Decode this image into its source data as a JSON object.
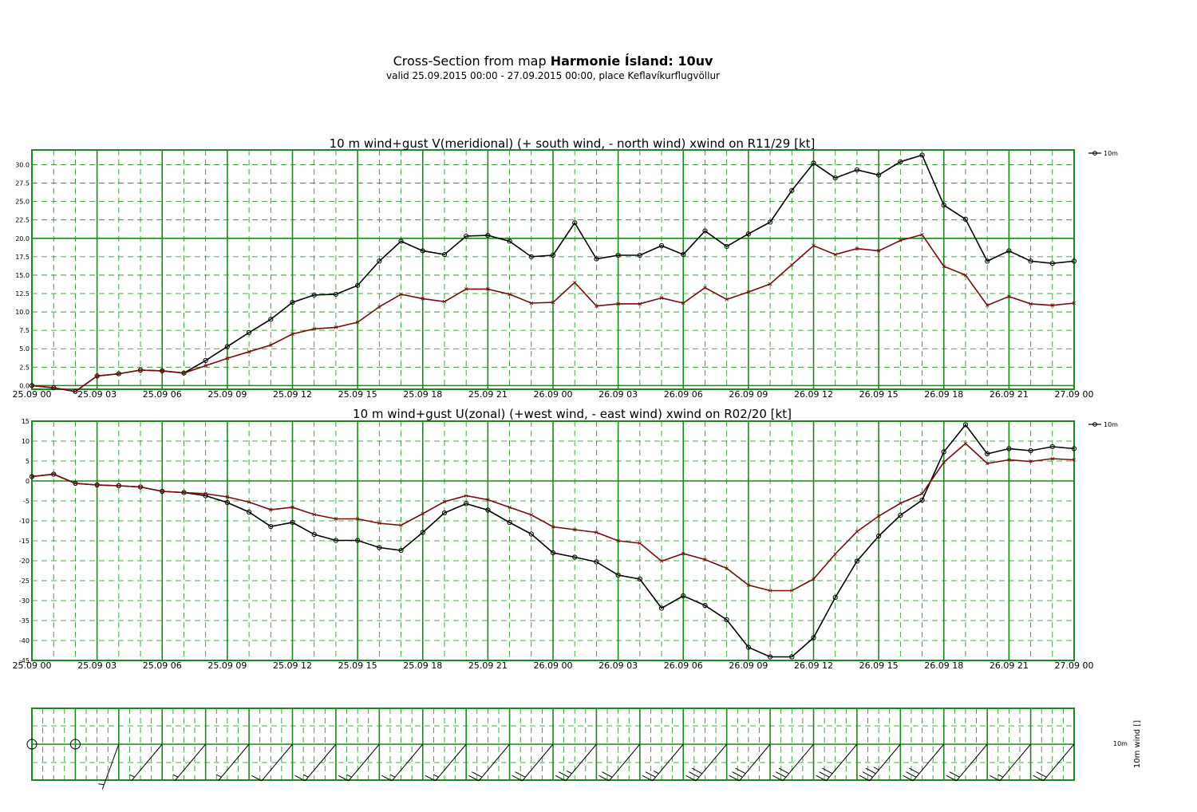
{
  "header": {
    "title_prefix": "Cross-Section from map ",
    "title_bold": "Harmonie Ísland: 10uv",
    "subtitle": "valid 25.09.2015 00:00 - 27.09.2015 00:00, place Keflavíkurflugvöllur"
  },
  "x_tick_labels": [
    "25.09 00",
    "25.09 03",
    "25.09 06",
    "25.09 09",
    "25.09 12",
    "25.09 15",
    "25.09 18",
    "25.09 21",
    "26.09 00",
    "26.09 03",
    "26.09 06",
    "26.09 09",
    "26.09 12",
    "26.09 15",
    "26.09 18",
    "26.09 21",
    "27.09 00"
  ],
  "colors": {
    "grid": "#1a8a1a",
    "wind": "#000000",
    "gust": "#7a0a0a"
  },
  "chart_data": [
    {
      "type": "line",
      "title": "10 m wind+gust V(meridional) (+ south wind, - north wind) xwind on R11/29 [kt]",
      "x_unit": "hours since 25.09 00",
      "x": [
        0,
        1,
        2,
        3,
        4,
        5,
        6,
        7,
        8,
        9,
        10,
        11,
        12,
        13,
        14,
        15,
        16,
        17,
        18,
        19,
        20,
        21,
        22,
        23,
        24,
        25,
        26,
        27,
        28,
        29,
        30,
        31,
        32,
        33,
        34,
        35,
        36,
        37,
        38,
        39,
        40,
        41,
        42,
        43,
        44,
        45,
        46,
        47,
        48
      ],
      "xlim": [
        0,
        48
      ],
      "ylim": [
        -0.5,
        32
      ],
      "y_ticks": [
        "0.0",
        "2.5",
        "5.0",
        "7.5",
        "10.0",
        "12.5",
        "15.0",
        "17.5",
        "20.0",
        "22.5",
        "25.0",
        "27.5",
        "30.0"
      ],
      "legend": "10m",
      "series": [
        {
          "name": "10m",
          "role": "wind",
          "marker": "circle",
          "values": [
            0,
            -0.3,
            -0.8,
            1.3,
            1.6,
            2.1,
            2.0,
            1.7,
            3.4,
            5.3,
            7.2,
            9.0,
            11.3,
            12.3,
            12.4,
            13.6,
            16.9,
            19.6,
            18.3,
            17.8,
            20.3,
            20.4,
            19.6,
            17.5,
            17.7,
            22.1,
            17.2,
            17.7,
            17.7,
            19.0,
            17.8,
            21.0,
            18.9,
            20.6,
            22.2,
            26.5,
            30.2,
            28.2,
            29.3,
            28.6,
            30.4,
            31.3,
            24.5,
            22.6,
            16.9,
            18.3,
            16.9,
            16.6,
            16.9
          ]
        },
        {
          "name": "",
          "role": "gust",
          "values": [
            0,
            -0.3,
            -0.8,
            1.3,
            1.6,
            2.1,
            2.0,
            1.7,
            2.7,
            3.7,
            4.6,
            5.5,
            7.0,
            7.7,
            7.9,
            8.6,
            10.7,
            12.4,
            11.8,
            11.4,
            13.1,
            13.1,
            12.4,
            11.2,
            11.3,
            14.0,
            10.8,
            11.1,
            11.1,
            11.9,
            11.2,
            13.3,
            11.7,
            12.7,
            13.8,
            16.4,
            19.0,
            17.8,
            18.6,
            18.3,
            19.7,
            20.5,
            16.2,
            15.0,
            10.9,
            12.1,
            11.1,
            10.9,
            11.2
          ]
        }
      ]
    },
    {
      "type": "line",
      "title": "10 m wind+gust U(zonal) (+west wind, - east wind) xwind on R02/20 [kt]",
      "x_unit": "hours since 25.09 00",
      "x": [
        0,
        1,
        2,
        3,
        4,
        5,
        6,
        7,
        8,
        9,
        10,
        11,
        12,
        13,
        14,
        15,
        16,
        17,
        18,
        19,
        20,
        21,
        22,
        23,
        24,
        25,
        26,
        27,
        28,
        29,
        30,
        31,
        32,
        33,
        34,
        35,
        36,
        37,
        38,
        39,
        40,
        41,
        42,
        43,
        44,
        45,
        46,
        47,
        48
      ],
      "xlim": [
        0,
        48
      ],
      "ylim": [
        -45,
        15
      ],
      "y_ticks": [
        "15",
        "10",
        "5",
        "0",
        "-5",
        "-10",
        "-15",
        "-20",
        "-25",
        "-30",
        "-35",
        "-40",
        "-45"
      ],
      "legend": "10m",
      "series": [
        {
          "name": "10m",
          "role": "wind",
          "marker": "circle",
          "values": [
            1.1,
            1.7,
            -0.6,
            -1.0,
            -1.2,
            -1.5,
            -2.6,
            -2.9,
            -3.7,
            -5.4,
            -7.8,
            -11.4,
            -10.4,
            -13.4,
            -14.9,
            -14.9,
            -16.7,
            -17.4,
            -12.9,
            -8.0,
            -5.7,
            -7.3,
            -10.4,
            -13.3,
            -18.0,
            -19.1,
            -20.3,
            -23.6,
            -24.6,
            -31.9,
            -28.8,
            -31.2,
            -34.8,
            -41.7,
            -44.1,
            -44.1,
            -39.3,
            -29.2,
            -20.1,
            -13.8,
            -8.6,
            -4.8,
            7.3,
            14.1,
            6.8,
            8.1,
            7.6,
            8.6,
            8.1
          ]
        },
        {
          "name": "",
          "role": "gust",
          "values": [
            1.1,
            1.7,
            -0.6,
            -1.0,
            -1.2,
            -1.5,
            -2.6,
            -2.9,
            -3.2,
            -4.0,
            -5.3,
            -7.2,
            -6.6,
            -8.4,
            -9.5,
            -9.5,
            -10.6,
            -11.1,
            -8.2,
            -5.2,
            -3.7,
            -4.7,
            -6.6,
            -8.5,
            -11.5,
            -12.2,
            -12.9,
            -15.0,
            -15.6,
            -20.1,
            -18.2,
            -19.7,
            -21.9,
            -26.1,
            -27.5,
            -27.5,
            -24.6,
            -18.3,
            -12.7,
            -8.8,
            -5.6,
            -3.2,
            4.7,
            9.4,
            4.4,
            5.3,
            4.9,
            5.6,
            5.3
          ]
        }
      ]
    },
    {
      "type": "wind-barbs",
      "ylabel": "10m wind []",
      "series_label": "10m",
      "x_step_hours": 2,
      "directions_deg": [
        0,
        200,
        200,
        220,
        220,
        220,
        220,
        220,
        220,
        220,
        220,
        220,
        220,
        220,
        220,
        220,
        220,
        220,
        220,
        220,
        220,
        220,
        220,
        220,
        220
      ],
      "speeds_kt": [
        0,
        2,
        3,
        3,
        5,
        7,
        11,
        14,
        15,
        17,
        17,
        21,
        21,
        25,
        22,
        27,
        30,
        32,
        32,
        32,
        33,
        31,
        18,
        16,
        18
      ]
    }
  ]
}
